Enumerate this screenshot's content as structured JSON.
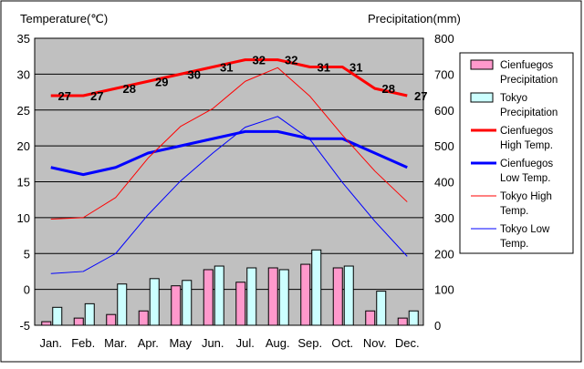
{
  "chart_data": {
    "type": "bar",
    "left_axis_title": "Temperature(℃)",
    "right_axis_title": "Precipitation(mm)",
    "categories": [
      "Jan.",
      "Feb.",
      "Mar.",
      "Apr.",
      "May",
      "Jun.",
      "Jul.",
      "Aug.",
      "Sep.",
      "Oct.",
      "Nov.",
      "Dec."
    ],
    "left_ylim": [
      -5,
      35
    ],
    "left_ticks": [
      -5,
      0,
      5,
      10,
      15,
      20,
      25,
      30,
      35
    ],
    "right_ylim": [
      0,
      800
    ],
    "right_ticks": [
      0,
      100,
      200,
      300,
      400,
      500,
      600,
      700,
      800
    ],
    "grid": true,
    "legend_position": "right",
    "bar_series": [
      {
        "name": "Cienfuegos Precipitation",
        "axis": "right",
        "color": "#ff99cc",
        "values": [
          10,
          20,
          30,
          40,
          110,
          155,
          120,
          160,
          170,
          160,
          40,
          20
        ]
      },
      {
        "name": "Tokyo Precipitation",
        "axis": "right",
        "color": "#ccffff",
        "values": [
          50,
          60,
          115,
          130,
          125,
          165,
          160,
          155,
          210,
          165,
          95,
          40
        ]
      }
    ],
    "line_series": [
      {
        "name": "Cienfuegos High Temp.",
        "axis": "left",
        "color": "#ff0000",
        "width": 3,
        "values": [
          27,
          27,
          28,
          29,
          30,
          31,
          32,
          32,
          31,
          31,
          28,
          27
        ],
        "show_labels": true,
        "labels": [
          "27",
          "27",
          "28",
          "29",
          "30",
          "31",
          "32",
          "32",
          "31",
          "31",
          "28",
          "27"
        ]
      },
      {
        "name": "Cienfuegos Low Temp.",
        "axis": "left",
        "color": "#0000ff",
        "width": 3,
        "values": [
          17,
          16,
          17,
          19,
          20,
          21,
          22,
          22,
          21,
          21,
          19,
          17
        ],
        "show_labels": false
      },
      {
        "name": "Tokyo High Temp.",
        "axis": "left",
        "color": "#ff0000",
        "width": 1,
        "values": [
          9.8,
          10,
          12.8,
          18.3,
          22.7,
          25.2,
          29,
          30.9,
          26.9,
          21.5,
          16.5,
          12.2
        ],
        "show_labels": false
      },
      {
        "name": "Tokyo Low Temp.",
        "axis": "left",
        "color": "#0000ff",
        "width": 1,
        "values": [
          2.2,
          2.5,
          5,
          10.4,
          15.1,
          19,
          22.6,
          24.1,
          20.9,
          14.9,
          9.5,
          4.6
        ],
        "show_labels": false
      }
    ],
    "legend": [
      {
        "label": "Cienfuegos Precipitation",
        "lines": [
          "Cienfuegos",
          "Precipitation"
        ],
        "kind": "box",
        "color": "#ff99cc"
      },
      {
        "label": "Tokyo Precipitation",
        "lines": [
          "Tokyo",
          "Precipitation"
        ],
        "kind": "box",
        "color": "#ccffff"
      },
      {
        "label": "Cienfuegos High Temp.",
        "lines": [
          "Cienfuegos",
          "High Temp."
        ],
        "kind": "line",
        "color": "#ff0000",
        "width": 3
      },
      {
        "label": "Cienfuegos Low Temp.",
        "lines": [
          "Cienfuegos",
          "Low Temp."
        ],
        "kind": "line",
        "color": "#0000ff",
        "width": 3
      },
      {
        "label": "Tokyo High Temp.",
        "lines": [
          "Tokyo High",
          "Temp."
        ],
        "kind": "line",
        "color": "#ff0000",
        "width": 1
      },
      {
        "label": "Tokyo Low Temp.",
        "lines": [
          "Tokyo Low",
          "Temp."
        ],
        "kind": "line",
        "color": "#0000ff",
        "width": 1
      }
    ],
    "colors": {
      "plot_background": "#c0c0c0",
      "gridline": "#000000"
    }
  }
}
